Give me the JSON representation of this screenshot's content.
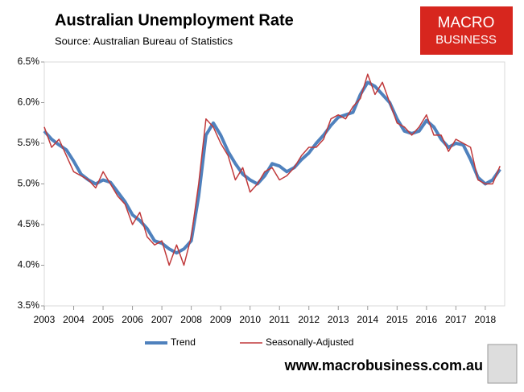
{
  "chart_data": {
    "type": "line",
    "title": "Australian Unemployment Rate",
    "subtitle": "Source: Australian Bureau of Statistics",
    "logo": [
      "MACRO",
      "BUSINESS"
    ],
    "footer": "www.macrobusiness.com.au",
    "x": [
      2003,
      2003.25,
      2003.5,
      2003.75,
      2004,
      2004.25,
      2004.5,
      2004.75,
      2005,
      2005.25,
      2005.5,
      2005.75,
      2006,
      2006.25,
      2006.5,
      2006.75,
      2007,
      2007.25,
      2007.5,
      2007.75,
      2008,
      2008.25,
      2008.5,
      2008.75,
      2009,
      2009.25,
      2009.5,
      2009.75,
      2010,
      2010.25,
      2010.5,
      2010.75,
      2011,
      2011.25,
      2011.5,
      2011.75,
      2012,
      2012.25,
      2012.5,
      2012.75,
      2013,
      2013.25,
      2013.5,
      2013.75,
      2014,
      2014.25,
      2014.5,
      2014.75,
      2015,
      2015.25,
      2015.5,
      2015.75,
      2016,
      2016.25,
      2016.5,
      2016.75,
      2017,
      2017.25,
      2017.5,
      2017.75,
      2018,
      2018.25,
      2018.5
    ],
    "series": [
      {
        "name": "Trend",
        "color": "#4f81bd",
        "values": [
          5.65,
          5.55,
          5.48,
          5.42,
          5.28,
          5.12,
          5.05,
          5.0,
          5.05,
          5.02,
          4.9,
          4.78,
          4.62,
          4.55,
          4.45,
          4.3,
          4.27,
          4.2,
          4.15,
          4.2,
          4.3,
          4.85,
          5.6,
          5.75,
          5.6,
          5.4,
          5.25,
          5.12,
          5.05,
          5.0,
          5.1,
          5.25,
          5.22,
          5.15,
          5.2,
          5.3,
          5.38,
          5.5,
          5.6,
          5.72,
          5.82,
          5.85,
          5.88,
          6.1,
          6.25,
          6.2,
          6.1,
          6.0,
          5.8,
          5.65,
          5.62,
          5.65,
          5.78,
          5.7,
          5.55,
          5.45,
          5.5,
          5.48,
          5.3,
          5.08,
          5.0,
          5.05,
          5.18
        ]
      },
      {
        "name": "Seasonally-Adjusted",
        "color": "#c0393b",
        "values": [
          5.7,
          5.45,
          5.55,
          5.35,
          5.15,
          5.1,
          5.05,
          4.95,
          5.15,
          5.0,
          4.85,
          4.75,
          4.5,
          4.65,
          4.35,
          4.25,
          4.3,
          4.0,
          4.25,
          4.0,
          4.35,
          5.0,
          5.8,
          5.7,
          5.5,
          5.35,
          5.05,
          5.2,
          4.9,
          5.0,
          5.15,
          5.2,
          5.05,
          5.1,
          5.2,
          5.35,
          5.45,
          5.45,
          5.55,
          5.8,
          5.85,
          5.8,
          5.95,
          6.05,
          6.35,
          6.1,
          6.25,
          6.0,
          5.75,
          5.7,
          5.6,
          5.7,
          5.85,
          5.6,
          5.6,
          5.4,
          5.55,
          5.5,
          5.45,
          5.05,
          5.0,
          5.0,
          5.22
        ]
      }
    ],
    "xlim": [
      2003,
      2018.66
    ],
    "xticks": [
      2003,
      2004,
      2005,
      2006,
      2007,
      2008,
      2009,
      2010,
      2011,
      2012,
      2013,
      2014,
      2015,
      2016,
      2017,
      2018
    ],
    "ylim": [
      3.5,
      6.5
    ],
    "yticks": [
      {
        "value": 3.5,
        "label": "3.5%"
      },
      {
        "value": 4,
        "label": "4.0%"
      },
      {
        "value": 4.5,
        "label": "4.5%"
      },
      {
        "value": 5,
        "label": "5.0%"
      },
      {
        "value": 5.5,
        "label": "5.5%"
      },
      {
        "value": 6,
        "label": "6.0%"
      },
      {
        "value": 6.5,
        "label": "6.5%"
      }
    ],
    "legend": "bottom"
  }
}
